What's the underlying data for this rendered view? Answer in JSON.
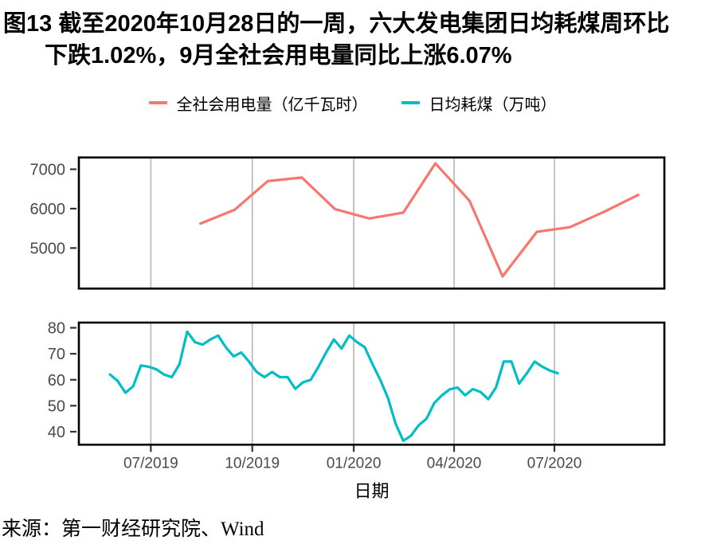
{
  "title": {
    "line1": "图13  截至2020年10月28日的一周，六大发电集团日均耗煤周环比",
    "line2": "下跌1.02%，9月全社会用电量同比上涨6.07%"
  },
  "legend": [
    {
      "label": "全社会用电量（亿千瓦时）",
      "color": "#F8766D"
    },
    {
      "label": "日均耗煤（万吨）",
      "color": "#00BFC4"
    }
  ],
  "source": "来源：第一财经研究院、Wind",
  "chart_data": {
    "type": "line",
    "xlabel": "日期",
    "grid": "vertical-only",
    "grid_color": "#bdbdbd",
    "border_color": "#000000",
    "tick_color": "#333333",
    "tick_label_color": "#4a4a4a",
    "x_ticks": [
      "07/2019",
      "10/2019",
      "01/2020",
      "04/2020",
      "07/2020"
    ],
    "x_tick_dates": [
      "2019-07-01",
      "2019-10-01",
      "2020-01-01",
      "2020-04-01",
      "2020-07-01"
    ],
    "panels": [
      {
        "name": "electricity",
        "ylim": [
          3970,
          7300
        ],
        "yticks": [
          5000,
          6000,
          7000
        ],
        "series": {
          "name": "全社会用电量（亿千瓦时）",
          "color": "#F8766D",
          "frequency": "monthly",
          "months": [
            "2019-08",
            "2019-09",
            "2019-10",
            "2019-11",
            "2019-12",
            "2020-01",
            "2020-02",
            "2020-03",
            "2020-04",
            "2020-05",
            "2020-06",
            "2020-07",
            "2020-08",
            "2020-09"
          ],
          "values": [
            5620,
            5970,
            6700,
            6790,
            5990,
            5750,
            5900,
            7150,
            6200,
            4280,
            5410,
            5530,
            5920,
            6350
          ]
        }
      },
      {
        "name": "coal",
        "ylim": [
          35,
          82
        ],
        "yticks": [
          40,
          50,
          60,
          70,
          80
        ],
        "series": {
          "name": "日均耗煤（万吨）",
          "color": "#00BFC4",
          "frequency": "weekly",
          "start_date": "2019-05-25",
          "step_days": 7,
          "values": [
            62,
            59.5,
            55,
            57.5,
            65.5,
            65,
            64,
            62,
            61,
            66,
            78.5,
            74.5,
            73.5,
            75.5,
            77,
            72.5,
            69,
            70.5,
            67,
            63,
            61,
            63,
            61,
            61,
            56.5,
            59,
            60,
            65,
            70.5,
            75.5,
            72,
            77,
            74.5,
            72.5,
            66,
            60,
            53,
            43,
            36.5,
            38.5,
            42.5,
            45,
            51,
            54,
            56.3,
            57,
            54,
            56.4,
            55.3,
            52.5,
            57,
            67,
            67,
            58.5,
            62.5,
            67,
            65,
            63.5,
            62.5
          ]
        }
      }
    ]
  }
}
